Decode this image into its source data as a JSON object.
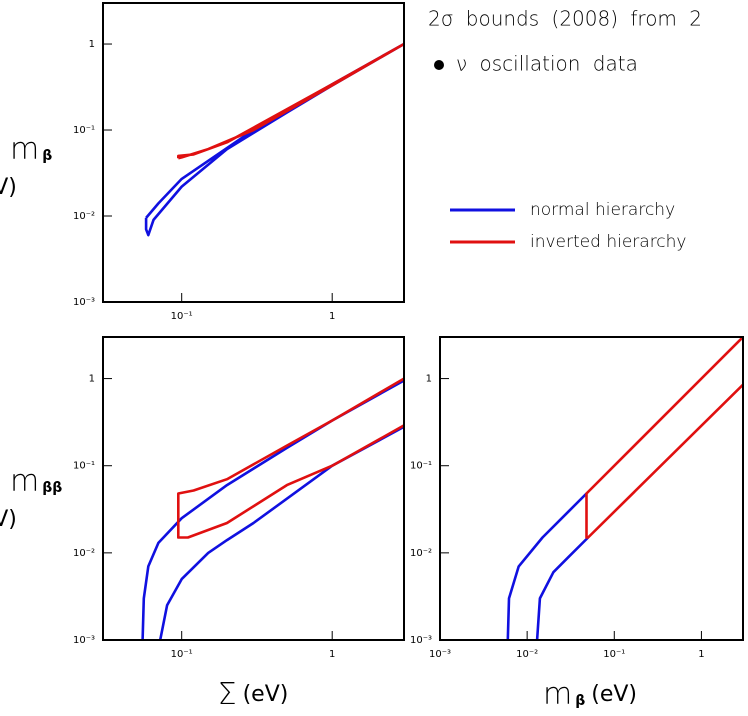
{
  "chart_data": [
    {
      "type": "line",
      "xscale": "log",
      "yscale": "log",
      "annotations": [
        "2σ bounds (2008) from 2",
        "ν oscillation data"
      ],
      "ylabel": {
        "symbol": "m",
        "subscript": "β",
        "unit": "(eV)"
      },
      "xlim": [
        0.03,
        3
      ],
      "ylim": [
        0.001,
        3
      ],
      "xticks": [
        {
          "value": 0.1,
          "label": "10⁻¹"
        },
        1
      ],
      "yticks": [
        {
          "value": 0.001,
          "label": "10⁻³"
        },
        {
          "value": 0.01,
          "label": "10⁻²"
        },
        {
          "value": 0.1,
          "label": "10⁻¹"
        },
        1
      ],
      "legend": "right",
      "series": [
        {
          "name": "normal hierarchy",
          "color": "#1010e0",
          "x": [
            0.058,
            0.058,
            0.06,
            0.065,
            0.1,
            0.2,
            0.5,
            1,
            3,
            1,
            0.3,
            0.1,
            0.07,
            0.058
          ],
          "values": [
            0.0095,
            0.007,
            0.006,
            0.009,
            0.022,
            0.06,
            0.16,
            0.33,
            1.0,
            0.34,
            0.1,
            0.027,
            0.014,
            0.0095
          ]
        },
        {
          "name": "inverted hierarchy",
          "color": "#e01010",
          "x": [
            0.095,
            0.1,
            0.15,
            0.3,
            1,
            3,
            1,
            0.2,
            0.12,
            0.095,
            0.095
          ],
          "values": [
            0.047,
            0.048,
            0.06,
            0.1,
            0.33,
            1.0,
            0.34,
            0.072,
            0.052,
            0.05,
            0.047
          ]
        }
      ]
    },
    {
      "type": "line",
      "xscale": "log",
      "yscale": "log",
      "xlabel": {
        "symbol": "Σ",
        "unit": "(eV)"
      },
      "ylabel": {
        "symbol": "m",
        "subscript": "ββ",
        "unit": "(eV)"
      },
      "xlim": [
        0.03,
        3
      ],
      "ylim": [
        0.001,
        3
      ],
      "xticks": [
        {
          "value": 0.1,
          "label": "10⁻¹"
        },
        1
      ],
      "yticks": [
        {
          "value": 0.001,
          "label": "10⁻³"
        },
        {
          "value": 0.01,
          "label": "10⁻²"
        },
        {
          "value": 0.1,
          "label": "10⁻¹"
        },
        1
      ],
      "series": [
        {
          "color": "#1010e0",
          "x": [
            0.055,
            0.056,
            0.06,
            0.07,
            0.1,
            0.2,
            0.5,
            1,
            3,
            null,
            0.072,
            0.08,
            0.1,
            0.15,
            0.2,
            0.3,
            1,
            3
          ],
          "values": [
            0.001,
            0.003,
            0.007,
            0.013,
            0.025,
            0.06,
            0.16,
            0.33,
            0.95,
            null,
            0.001,
            0.0025,
            0.005,
            0.01,
            0.014,
            0.022,
            0.1,
            0.28
          ]
        },
        {
          "color": "#e01010",
          "x": [
            3,
            1,
            0.5,
            0.2,
            0.12,
            0.095,
            0.095,
            0.11,
            0.2,
            0.5,
            1,
            3
          ],
          "values": [
            1.0,
            0.33,
            0.17,
            0.07,
            0.052,
            0.048,
            0.015,
            0.015,
            0.022,
            0.06,
            0.1,
            0.29
          ]
        }
      ]
    },
    {
      "type": "line",
      "xscale": "log",
      "yscale": "log",
      "xlabel": {
        "symbol": "m",
        "subscript": "β",
        "unit": "(eV)"
      },
      "xlim": [
        0.001,
        3
      ],
      "ylim": [
        0.001,
        3
      ],
      "xticks": [
        {
          "value": 0.001,
          "label": "10⁻³"
        },
        {
          "value": 0.01,
          "label": "10⁻²"
        },
        {
          "value": 0.1,
          "label": "10⁻¹"
        },
        1
      ],
      "yticks": [
        {
          "value": 0.001,
          "label": "10⁻³"
        },
        {
          "value": 0.01,
          "label": "10⁻²"
        },
        {
          "value": 0.1,
          "label": "10⁻¹"
        },
        1
      ],
      "series": [
        {
          "color": "#1010e0",
          "x": [
            0.006,
            0.0062,
            0.008,
            0.015,
            0.03,
            0.048,
            null,
            0.013,
            0.014,
            0.02,
            0.03,
            0.05
          ],
          "values": [
            0.001,
            0.003,
            0.007,
            0.015,
            0.03,
            0.048,
            null,
            0.001,
            0.003,
            0.006,
            0.009,
            0.015
          ]
        },
        {
          "color": "#e01010",
          "x": [
            3,
            0.048,
            0.048,
            0.05,
            3
          ],
          "values": [
            3,
            0.048,
            0.015,
            0.015,
            0.85
          ]
        }
      ]
    }
  ]
}
